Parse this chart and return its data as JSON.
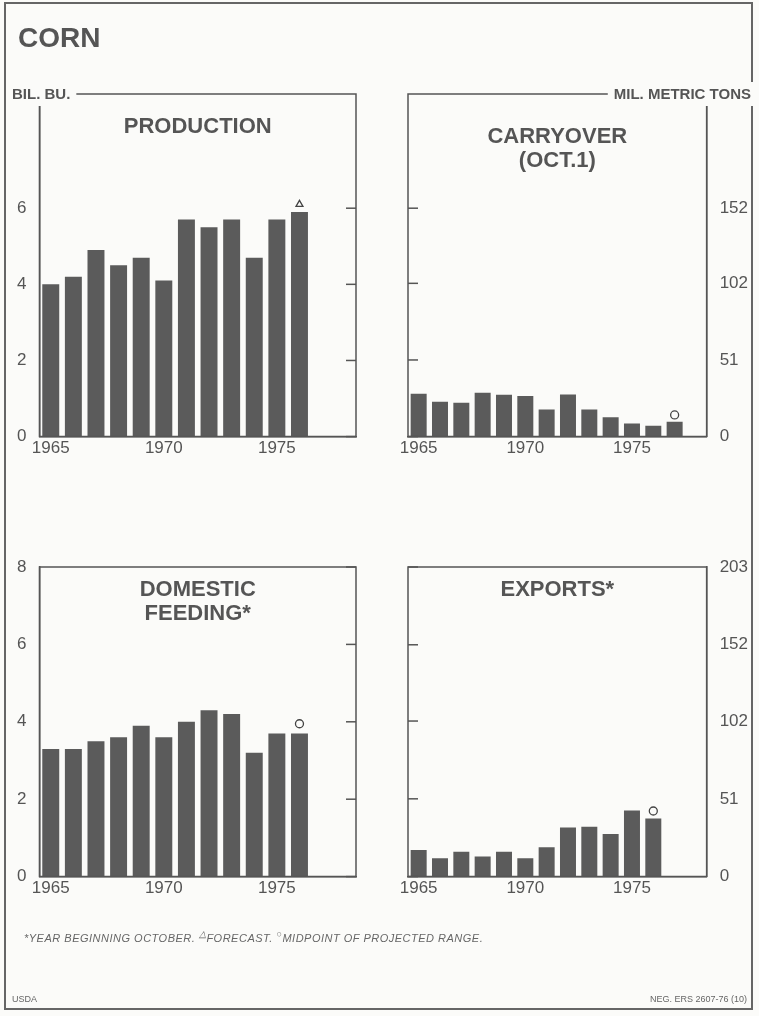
{
  "chart_data": [
    {
      "type": "bar",
      "title": "PRODUCTION",
      "ylabel": "BIL. BU.",
      "categories": [
        "1965",
        null,
        null,
        null,
        null,
        "1970",
        null,
        null,
        null,
        null,
        "1975",
        null,
        null,
        null
      ],
      "ylim": [
        0,
        9
      ],
      "yticks": [
        0,
        2,
        4,
        6
      ],
      "series": [
        {
          "color": "#5b5b5b",
          "values": [
            4.0,
            4.2,
            4.9,
            4.5,
            4.7,
            4.1,
            5.7,
            5.5,
            5.7,
            4.7,
            5.7,
            5.9,
            null,
            null
          ]
        },
        {
          "type": "scatter",
          "marker": "triangle",
          "color": "#444444",
          "values": [
            null,
            null,
            null,
            null,
            null,
            null,
            null,
            null,
            null,
            null,
            null,
            6.1,
            null,
            null
          ]
        }
      ],
      "annotations": [
        "CORN"
      ]
    },
    {
      "type": "bar",
      "title": "CARRYOVER (OCT.1)",
      "y2label": "MIL. METRIC TONS",
      "categories": [
        "1965",
        null,
        null,
        null,
        null,
        "1970",
        null,
        null,
        null,
        null,
        "1975",
        null,
        null,
        null
      ],
      "y2lim": [
        0,
        228
      ],
      "y2ticks": [
        0,
        51,
        102,
        152
      ],
      "series": [
        {
          "color": "#5b5b5b",
          "axis": "y2",
          "values": [
            28.5,
            23.2,
            22.5,
            29.2,
            27.8,
            27.1,
            18.0,
            28.0,
            18.0,
            12.8,
            8.7,
            7.3,
            9.8,
            null
          ]
        },
        {
          "type": "scatter",
          "marker": "circle",
          "color": "#444444",
          "axis": "y2",
          "values": [
            null,
            null,
            null,
            null,
            null,
            null,
            null,
            null,
            null,
            null,
            null,
            null,
            14.4,
            null
          ]
        }
      ]
    },
    {
      "type": "bar",
      "title": "DOMESTIC FEEDING*",
      "categories": [
        "1965",
        null,
        null,
        null,
        null,
        "1970",
        null,
        null,
        null,
        null,
        "1975",
        null,
        null,
        null
      ],
      "ylim": [
        0,
        8
      ],
      "yticks": [
        0,
        2,
        4,
        6,
        8
      ],
      "series": [
        {
          "color": "#5b5b5b",
          "values": [
            3.3,
            3.3,
            3.5,
            3.6,
            3.9,
            3.6,
            4.0,
            4.3,
            4.2,
            3.2,
            3.7,
            3.7,
            null,
            null
          ]
        },
        {
          "type": "scatter",
          "marker": "circle",
          "color": "#444444",
          "values": [
            null,
            null,
            null,
            null,
            null,
            null,
            null,
            null,
            null,
            null,
            null,
            3.95,
            null,
            null
          ]
        }
      ]
    },
    {
      "type": "bar",
      "title": "EXPORTS*",
      "categories": [
        "1965",
        null,
        null,
        null,
        null,
        "1970",
        null,
        null,
        null,
        null,
        "1975",
        null,
        null,
        null
      ],
      "y2lim": [
        0,
        203
      ],
      "y2ticks": [
        0,
        51,
        102,
        152,
        203
      ],
      "series": [
        {
          "color": "#5b5b5b",
          "axis": "y2",
          "values": [
            17.5,
            12.0,
            16.3,
            13.2,
            16.3,
            12.0,
            19.3,
            32.2,
            32.7,
            27.9,
            43.3,
            38.1,
            null,
            null
          ]
        },
        {
          "type": "scatter",
          "marker": "circle",
          "color": "#444444",
          "axis": "y2",
          "values": [
            null,
            null,
            null,
            null,
            null,
            null,
            null,
            null,
            null,
            null,
            null,
            43,
            null,
            null
          ]
        }
      ],
      "annotations": [
        "*YEAR BEGINNING OCTOBER.   $^{△}$FORECAST.   $^{○}$MIDPOINT OF PROJECTED RANGE.",
        "USDA",
        "NEG. ERS 2607-76 (10)"
      ]
    }
  ]
}
